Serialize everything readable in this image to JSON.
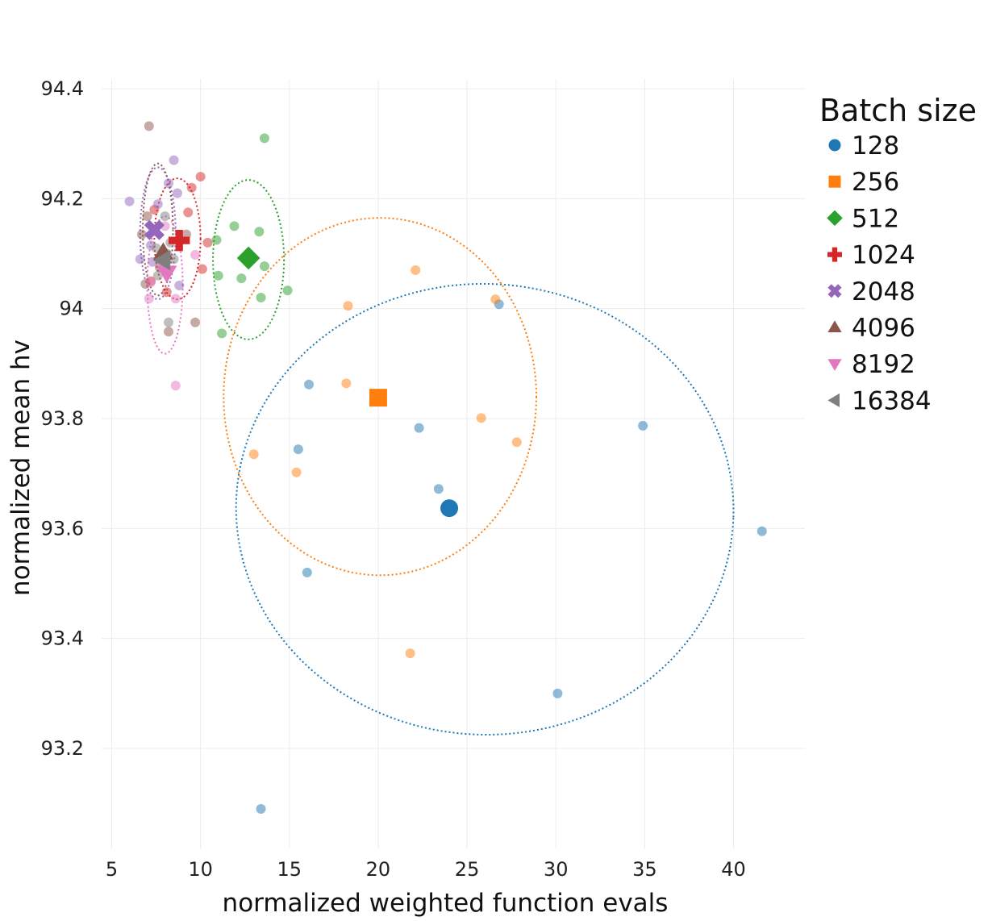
{
  "chart_data": {
    "type": "scatter",
    "title": "",
    "xlabel": "normalized weighted function evals",
    "ylabel": "normalized mean hv",
    "xlim": [
      4.5,
      44
    ],
    "ylim": [
      93.04,
      94.42
    ],
    "xticks": [
      5,
      10,
      15,
      20,
      25,
      30,
      35,
      40
    ],
    "yticks": [
      93.2,
      93.4,
      93.6,
      93.8,
      94,
      94.2,
      94.4
    ],
    "ytick_labels": [
      "93.2",
      "93.4",
      "93.6",
      "93.8",
      "94",
      "94.2",
      "94.4"
    ],
    "grid": true,
    "legend": {
      "title": "Batch size",
      "placement": "right"
    },
    "series": [
      {
        "name": "128",
        "color": "#1f77b4",
        "marker": "circle",
        "mean": [
          24.0,
          93.637
        ],
        "ellipse": {
          "cx": 26.0,
          "cy": 93.635,
          "rx": 14.0,
          "ry": 0.41,
          "angle": 2
        },
        "points": [
          [
            16.1,
            93.862
          ],
          [
            15.5,
            93.744
          ],
          [
            22.3,
            93.783
          ],
          [
            23.4,
            93.672
          ],
          [
            16.0,
            93.52
          ],
          [
            26.8,
            94.008
          ],
          [
            34.9,
            93.787
          ],
          [
            41.6,
            93.595
          ],
          [
            30.1,
            93.3
          ],
          [
            13.4,
            93.09
          ]
        ]
      },
      {
        "name": "256",
        "color": "#ff7f0e",
        "marker": "square",
        "mean": [
          20.0,
          93.838
        ],
        "ellipse": {
          "cx": 20.1,
          "cy": 93.84,
          "rx": 8.8,
          "ry": 0.325,
          "angle": 0
        },
        "points": [
          [
            22.1,
            94.07
          ],
          [
            18.3,
            94.005
          ],
          [
            26.6,
            94.017
          ],
          [
            18.2,
            93.864
          ],
          [
            25.8,
            93.801
          ],
          [
            27.8,
            93.757
          ],
          [
            13.0,
            93.735
          ],
          [
            15.4,
            93.702
          ],
          [
            21.8,
            93.373
          ]
        ]
      },
      {
        "name": "512",
        "color": "#2ca02c",
        "marker": "diamond",
        "mean": [
          12.7,
          94.092
        ],
        "ellipse": {
          "cx": 12.7,
          "cy": 94.089,
          "rx": 2.0,
          "ry": 0.145,
          "angle": 0
        },
        "points": [
          [
            13.6,
            94.31
          ],
          [
            11.9,
            94.15
          ],
          [
            13.3,
            94.14
          ],
          [
            10.9,
            94.125
          ],
          [
            13.6,
            94.077
          ],
          [
            11.0,
            94.06
          ],
          [
            12.3,
            94.055
          ],
          [
            14.9,
            94.033
          ],
          [
            13.4,
            94.02
          ],
          [
            11.2,
            93.955
          ]
        ]
      },
      {
        "name": "1024",
        "color": "#d62728",
        "marker": "cross",
        "mean": [
          8.8,
          94.124
        ],
        "ellipse": {
          "cx": 8.7,
          "cy": 94.127,
          "rx": 1.3,
          "ry": 0.11,
          "angle": 0
        },
        "points": [
          [
            10.0,
            94.24
          ],
          [
            9.5,
            94.22
          ],
          [
            9.3,
            94.175
          ],
          [
            7.4,
            94.18
          ],
          [
            10.4,
            94.12
          ],
          [
            10.1,
            94.072
          ],
          [
            8.1,
            94.03
          ],
          [
            7.2,
            94.05
          ]
        ]
      },
      {
        "name": "2048",
        "color": "#9467bd",
        "marker": "x",
        "mean": [
          7.4,
          94.143
        ],
        "ellipse": {
          "cx": 7.6,
          "cy": 94.137,
          "rx": 1.0,
          "ry": 0.12,
          "angle": 0
        },
        "points": [
          [
            8.5,
            94.27
          ],
          [
            8.2,
            94.228
          ],
          [
            6.0,
            94.195
          ],
          [
            7.6,
            94.19
          ],
          [
            8.7,
            94.21
          ],
          [
            7.3,
            94.085
          ],
          [
            7.2,
            94.115
          ],
          [
            8.8,
            94.042
          ],
          [
            6.6,
            94.09
          ]
        ]
      },
      {
        "name": "4096",
        "color": "#8c564b",
        "marker": "triangle-up",
        "mean": [
          7.9,
          94.102
        ],
        "ellipse": {
          "cx": 7.6,
          "cy": 94.144,
          "rx": 0.85,
          "ry": 0.12,
          "angle": 0
        },
        "points": [
          [
            7.1,
            94.332
          ],
          [
            7.0,
            94.168
          ],
          [
            6.7,
            94.135
          ],
          [
            9.2,
            94.135
          ],
          [
            7.7,
            94.075
          ],
          [
            6.9,
            94.045
          ],
          [
            9.7,
            93.975
          ],
          [
            8.2,
            93.958
          ],
          [
            8.1,
            94.1
          ]
        ]
      },
      {
        "name": "8192",
        "color": "#e377c2",
        "marker": "triangle-down",
        "mean": [
          8.1,
          94.065
        ],
        "ellipse": {
          "cx": 8.0,
          "cy": 94.043,
          "rx": 1.0,
          "ry": 0.125,
          "angle": 0
        },
        "points": [
          [
            9.7,
            94.098
          ],
          [
            7.2,
            94.048
          ],
          [
            7.1,
            94.018
          ],
          [
            8.6,
            94.018
          ],
          [
            8.6,
            93.86
          ],
          [
            8.0,
            94.15
          ]
        ]
      },
      {
        "name": "16384",
        "color": "#7f7f7f",
        "marker": "triangle-left",
        "mean": [
          7.9,
          94.088
        ],
        "ellipse": null,
        "points": [
          [
            8.0,
            94.168
          ],
          [
            8.3,
            94.12
          ],
          [
            8.5,
            94.09
          ],
          [
            7.6,
            94.06
          ],
          [
            8.2,
            93.975
          ],
          [
            7.5,
            94.11
          ]
        ]
      }
    ]
  }
}
